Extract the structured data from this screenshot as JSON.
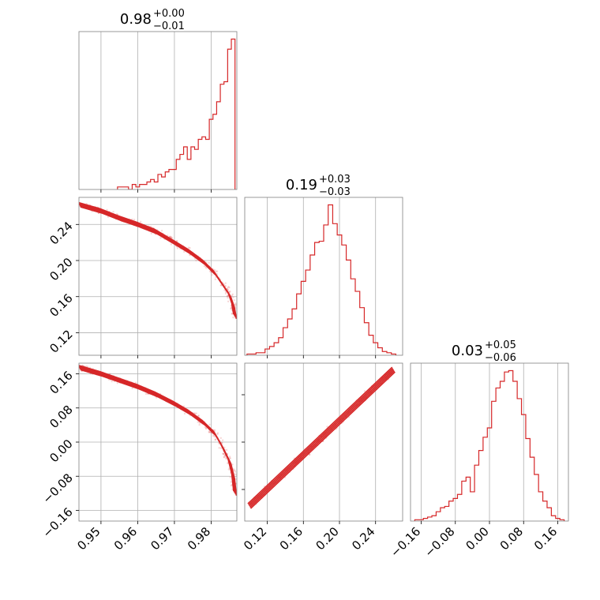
{
  "chart_data": [
    {
      "type": "histogram",
      "panel": "hist-0",
      "title": {
        "median": "0.98",
        "plus": "+0.00",
        "minus": "−0.01"
      },
      "xlim": [
        0.944,
        0.987
      ],
      "bins": [
        0.955,
        0.956,
        0.957,
        0.958,
        0.959,
        0.96,
        0.961,
        0.962,
        0.963,
        0.964,
        0.965,
        0.966,
        0.967,
        0.968,
        0.969,
        0.97,
        0.971,
        0.972,
        0.973,
        0.974,
        0.975,
        0.976,
        0.977,
        0.978,
        0.979,
        0.98,
        0.981,
        0.982,
        0.983,
        0.984,
        0.985,
        0.986
      ],
      "counts": [
        1,
        1,
        1,
        0,
        2,
        1,
        2,
        2,
        3,
        4,
        3,
        6,
        5,
        7,
        8,
        8,
        12,
        14,
        17,
        12,
        17,
        16,
        20,
        21,
        20,
        28,
        30,
        35,
        42,
        43,
        56,
        60
      ],
      "color": "#d62728",
      "xticks": [
        "0.95",
        "0.96",
        "0.97",
        "0.98"
      ]
    },
    {
      "type": "contour",
      "panel": "contour-1-0",
      "xlim": [
        0.944,
        0.987
      ],
      "ylim": [
        0.095,
        0.27
      ],
      "curve_x": [
        0.944,
        0.95,
        0.955,
        0.96,
        0.965,
        0.97,
        0.974,
        0.978,
        0.981,
        0.983,
        0.985,
        0.986,
        0.9865
      ],
      "curve_y": [
        0.262,
        0.255,
        0.247,
        0.24,
        0.232,
        0.22,
        0.21,
        0.198,
        0.186,
        0.174,
        0.162,
        0.15,
        0.138
      ],
      "color": "#d62728",
      "xticks": [
        "0.95",
        "0.96",
        "0.97",
        "0.98"
      ],
      "yticks": [
        "0.12",
        "0.16",
        "0.20",
        "0.24"
      ]
    },
    {
      "type": "histogram",
      "panel": "hist-1",
      "title": {
        "median": "0.19",
        "plus": "+0.03",
        "minus": "−0.03"
      },
      "xlim": [
        0.095,
        0.27
      ],
      "bins": [
        0.1,
        0.105,
        0.11,
        0.115,
        0.12,
        0.125,
        0.13,
        0.135,
        0.14,
        0.145,
        0.15,
        0.155,
        0.16,
        0.165,
        0.17,
        0.175,
        0.18,
        0.185,
        0.19,
        0.195,
        0.2,
        0.205,
        0.21,
        0.215,
        0.22,
        0.225,
        0.23,
        0.235,
        0.24,
        0.245,
        0.25,
        0.255,
        0.26
      ],
      "counts": [
        1,
        1,
        2,
        2,
        5,
        7,
        10,
        14,
        22,
        29,
        37,
        49,
        59,
        68,
        80,
        90,
        91,
        104,
        120,
        105,
        96,
        88,
        76,
        61,
        51,
        38,
        26,
        16,
        10,
        6,
        3,
        2,
        1
      ],
      "color": "#d62728",
      "xticks": [
        "0.12",
        "0.16",
        "0.20",
        "0.24"
      ]
    },
    {
      "type": "contour",
      "panel": "contour-2-0",
      "xlim": [
        0.944,
        0.987
      ],
      "ylim": [
        -0.185,
        0.185
      ],
      "curve_x": [
        0.944,
        0.95,
        0.955,
        0.96,
        0.965,
        0.97,
        0.974,
        0.978,
        0.981,
        0.983,
        0.985,
        0.986,
        0.9865
      ],
      "curve_y": [
        0.175,
        0.16,
        0.145,
        0.13,
        0.112,
        0.09,
        0.07,
        0.045,
        0.02,
        -0.01,
        -0.045,
        -0.08,
        -0.12
      ],
      "color": "#d62728",
      "xticks": [
        "0.95",
        "0.96",
        "0.97",
        "0.98"
      ],
      "yticks": [
        "−0.16",
        "−0.08",
        "0.00",
        "0.08",
        "0.16"
      ]
    },
    {
      "type": "contour",
      "panel": "contour-2-1",
      "xlim": [
        0.095,
        0.27
      ],
      "ylim": [
        -0.185,
        0.185
      ],
      "curve_x": [
        0.1,
        0.12,
        0.14,
        0.16,
        0.18,
        0.2,
        0.22,
        0.24,
        0.26
      ],
      "curve_y": [
        -0.15,
        -0.11,
        -0.07,
        -0.03,
        0.01,
        0.05,
        0.09,
        0.13,
        0.17
      ],
      "color": "#d62728",
      "xticks": [
        "0.12",
        "0.16",
        "0.20",
        "0.24"
      ]
    },
    {
      "type": "histogram",
      "panel": "hist-2",
      "title": {
        "median": "0.03",
        "plus": "+0.05",
        "minus": "−0.06"
      },
      "xlim": [
        -0.185,
        0.185
      ],
      "bins": [
        -0.17,
        -0.16,
        -0.15,
        -0.14,
        -0.13,
        -0.12,
        -0.11,
        -0.1,
        -0.09,
        -0.08,
        -0.07,
        -0.06,
        -0.05,
        -0.04,
        -0.03,
        -0.02,
        -0.01,
        0.0,
        0.01,
        0.02,
        0.03,
        0.04,
        0.05,
        0.06,
        0.07,
        0.08,
        0.09,
        0.1,
        0.11,
        0.12,
        0.13,
        0.14,
        0.15,
        0.16,
        0.17
      ],
      "counts": [
        1,
        1,
        2,
        3,
        4,
        7,
        10,
        11,
        15,
        17,
        20,
        30,
        33,
        22,
        42,
        53,
        63,
        70,
        90,
        100,
        105,
        112,
        113,
        105,
        92,
        80,
        62,
        48,
        35,
        22,
        15,
        10,
        4,
        2,
        1
      ],
      "color": "#d62728",
      "xticks": [
        "−0.16",
        "−0.08",
        "0.00",
        "0.08",
        "0.16"
      ]
    }
  ]
}
